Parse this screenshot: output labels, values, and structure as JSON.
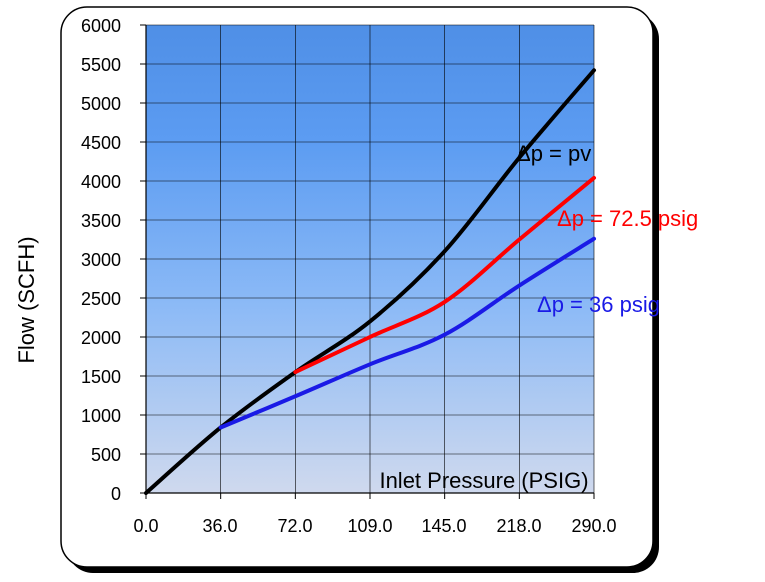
{
  "chart_data": {
    "type": "line",
    "xlabel": "Inlet Pressure (PSIG)",
    "ylabel": "Flow  (SCFH)",
    "categories": [
      "0.0",
      "36.0",
      "72.0",
      "109.0",
      "145.0",
      "218.0",
      "290.0"
    ],
    "yticks": [
      "0",
      "500",
      "1000",
      "1500",
      "2000",
      "2500",
      "3000",
      "3500",
      "4000",
      "4500",
      "5000",
      "5500",
      "6000"
    ],
    "ylim": [
      0,
      6000
    ],
    "grid": true,
    "series": [
      {
        "name": "Δp = pv",
        "color": "#000000",
        "values": [
          0,
          840,
          1550,
          2200,
          3100,
          4300,
          5420
        ]
      },
      {
        "name": "Δp = 72.5 psig",
        "color": "#ff0000",
        "values": [
          null,
          null,
          1550,
          2000,
          2450,
          3250,
          4040
        ]
      },
      {
        "name": "Δp = 36 psig",
        "color": "#1a1ae6",
        "values": [
          null,
          840,
          1240,
          1650,
          2030,
          2660,
          3260
        ]
      }
    ]
  }
}
